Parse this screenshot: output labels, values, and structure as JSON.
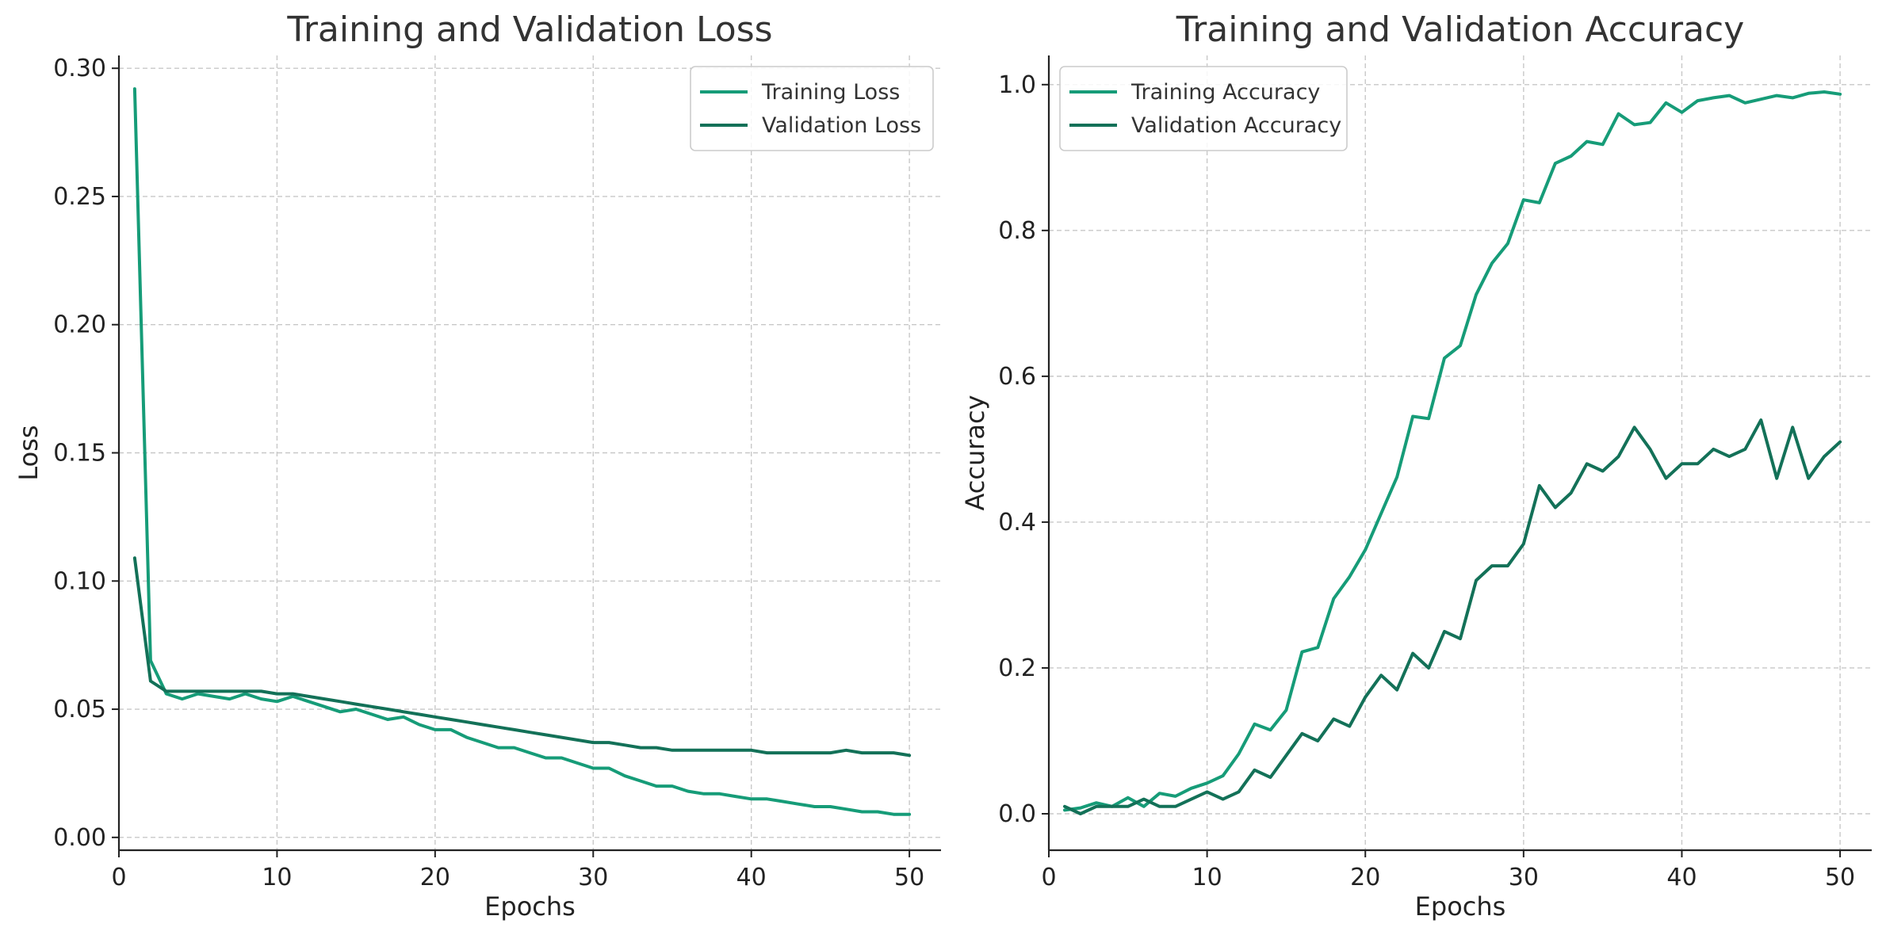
{
  "chart_data": [
    {
      "type": "line",
      "title": "Training and Validation Loss",
      "xlabel": "Epochs",
      "ylabel": "Loss",
      "xlim": [
        0,
        52
      ],
      "ylim": [
        -0.005,
        0.305
      ],
      "xticks": [
        0,
        10,
        20,
        30,
        40,
        50
      ],
      "yticks": [
        0.0,
        0.05,
        0.1,
        0.15,
        0.2,
        0.25,
        0.3
      ],
      "ytick_labels": [
        "0.00",
        "0.05",
        "0.10",
        "0.15",
        "0.20",
        "0.25",
        "0.30"
      ],
      "grid": true,
      "legend_position": "top-right",
      "x": [
        1,
        2,
        3,
        4,
        5,
        6,
        7,
        8,
        9,
        10,
        11,
        12,
        13,
        14,
        15,
        16,
        17,
        18,
        19,
        20,
        21,
        22,
        23,
        24,
        25,
        26,
        27,
        28,
        29,
        30,
        31,
        32,
        33,
        34,
        35,
        36,
        37,
        38,
        39,
        40,
        41,
        42,
        43,
        44,
        45,
        46,
        47,
        48,
        49,
        50
      ],
      "series": [
        {
          "name": "Training Loss",
          "color": "#169c78",
          "values": [
            0.292,
            0.069,
            0.056,
            0.054,
            0.056,
            0.055,
            0.054,
            0.056,
            0.054,
            0.053,
            0.055,
            0.053,
            0.051,
            0.049,
            0.05,
            0.048,
            0.046,
            0.047,
            0.044,
            0.042,
            0.042,
            0.039,
            0.037,
            0.035,
            0.035,
            0.033,
            0.031,
            0.031,
            0.029,
            0.027,
            0.027,
            0.024,
            0.022,
            0.02,
            0.02,
            0.018,
            0.017,
            0.017,
            0.016,
            0.015,
            0.015,
            0.014,
            0.013,
            0.012,
            0.012,
            0.011,
            0.01,
            0.01,
            0.009,
            0.009
          ]
        },
        {
          "name": "Validation Loss",
          "color": "#137158",
          "values": [
            0.109,
            0.061,
            0.057,
            0.057,
            0.057,
            0.057,
            0.057,
            0.057,
            0.057,
            0.056,
            0.056,
            0.055,
            0.054,
            0.053,
            0.052,
            0.051,
            0.05,
            0.049,
            0.048,
            0.047,
            0.046,
            0.045,
            0.044,
            0.043,
            0.042,
            0.041,
            0.04,
            0.039,
            0.038,
            0.037,
            0.037,
            0.036,
            0.035,
            0.035,
            0.034,
            0.034,
            0.034,
            0.034,
            0.034,
            0.034,
            0.033,
            0.033,
            0.033,
            0.033,
            0.033,
            0.034,
            0.033,
            0.033,
            0.033,
            0.032
          ]
        }
      ]
    },
    {
      "type": "line",
      "title": "Training and Validation Accuracy",
      "xlabel": "Epochs",
      "ylabel": "Accuracy",
      "xlim": [
        0,
        52
      ],
      "ylim": [
        -0.05,
        1.04
      ],
      "xticks": [
        0,
        10,
        20,
        30,
        40,
        50
      ],
      "yticks": [
        0.0,
        0.2,
        0.4,
        0.6,
        0.8,
        1.0
      ],
      "ytick_labels": [
        "0.0",
        "0.2",
        "0.4",
        "0.6",
        "0.8",
        "1.0"
      ],
      "grid": true,
      "legend_position": "top-left",
      "x": [
        1,
        2,
        3,
        4,
        5,
        6,
        7,
        8,
        9,
        10,
        11,
        12,
        13,
        14,
        15,
        16,
        17,
        18,
        19,
        20,
        21,
        22,
        23,
        24,
        25,
        26,
        27,
        28,
        29,
        30,
        31,
        32,
        33,
        34,
        35,
        36,
        37,
        38,
        39,
        40,
        41,
        42,
        43,
        44,
        45,
        46,
        47,
        48,
        49,
        50
      ],
      "series": [
        {
          "name": "Training Accuracy",
          "color": "#169c78",
          "values": [
            0.005,
            0.008,
            0.015,
            0.01,
            0.022,
            0.01,
            0.028,
            0.024,
            0.035,
            0.042,
            0.052,
            0.082,
            0.123,
            0.115,
            0.142,
            0.222,
            0.228,
            0.295,
            0.325,
            0.362,
            0.412,
            0.462,
            0.545,
            0.542,
            0.625,
            0.642,
            0.712,
            0.755,
            0.782,
            0.842,
            0.838,
            0.892,
            0.902,
            0.922,
            0.918,
            0.96,
            0.945,
            0.948,
            0.975,
            0.962,
            0.978,
            0.982,
            0.985,
            0.975,
            0.98,
            0.985,
            0.982,
            0.988,
            0.99,
            0.987
          ]
        },
        {
          "name": "Validation Accuracy",
          "color": "#137158",
          "values": [
            0.01,
            0.0,
            0.01,
            0.01,
            0.01,
            0.02,
            0.01,
            0.01,
            0.02,
            0.03,
            0.02,
            0.03,
            0.06,
            0.05,
            0.08,
            0.11,
            0.1,
            0.13,
            0.12,
            0.16,
            0.19,
            0.17,
            0.22,
            0.2,
            0.25,
            0.24,
            0.32,
            0.34,
            0.34,
            0.37,
            0.45,
            0.42,
            0.44,
            0.48,
            0.47,
            0.49,
            0.53,
            0.5,
            0.46,
            0.48,
            0.48,
            0.5,
            0.49,
            0.5,
            0.54,
            0.46,
            0.53,
            0.46,
            0.49,
            0.51
          ]
        }
      ]
    }
  ]
}
